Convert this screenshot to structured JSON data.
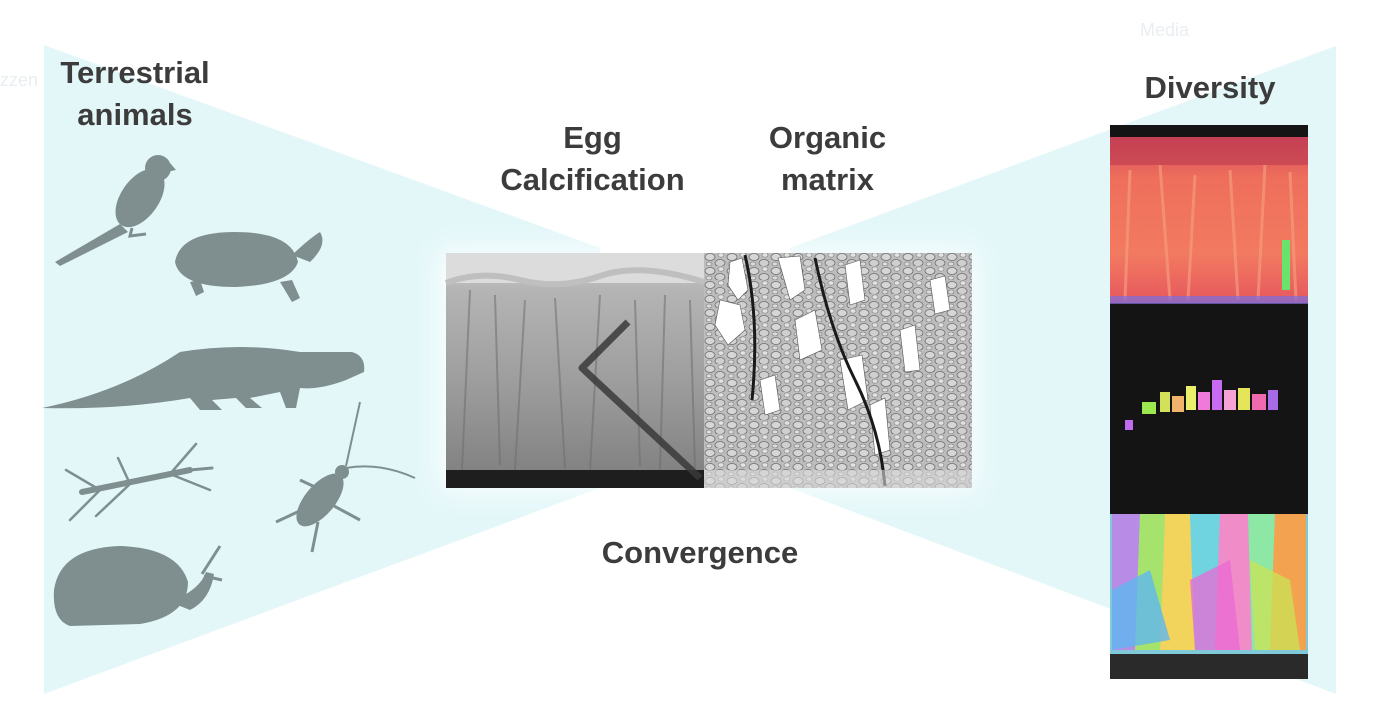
{
  "labels": {
    "terrestrial": [
      "Terrestrial",
      "animals"
    ],
    "egg_calcification": [
      "Egg",
      "Calcification"
    ],
    "organic_matrix": [
      "Organic",
      "matrix"
    ],
    "convergence": "Convergence",
    "diversity": "Diversity"
  },
  "animals": [
    "bird-icon",
    "turtle-icon",
    "crocodile-icon",
    "stick-insect-icon",
    "cockroach-icon",
    "snail-icon"
  ],
  "colors": {
    "funnel": "#e3f7f9",
    "silhouette": "#7f8f90",
    "text": "#3c3c3c",
    "panel_dark": "#141414"
  }
}
